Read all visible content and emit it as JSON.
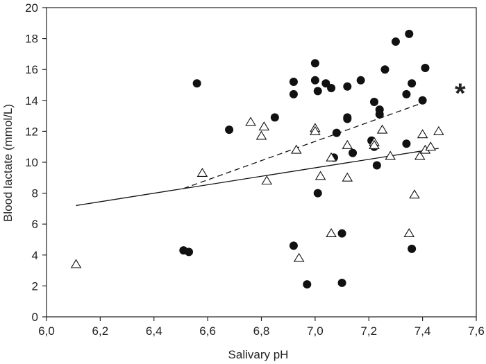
{
  "chart_data": {
    "type": "scatter",
    "xlabel": "Salivary pH",
    "ylabel": "Blood lactate (mmol/L)",
    "xlim": [
      6.0,
      7.6
    ],
    "ylim": [
      0,
      20
    ],
    "x_ticks": [
      "6,0",
      "6,2",
      "6,4",
      "6,6",
      "6,8",
      "7,0",
      "7,2",
      "7,4",
      "7,6"
    ],
    "y_ticks": [
      "0",
      "2",
      "4",
      "6",
      "8",
      "10",
      "12",
      "14",
      "16",
      "18",
      "20"
    ],
    "grid": false,
    "annotation": "*",
    "series": [
      {
        "marker": "filled-circle",
        "color": "#111111",
        "points": [
          [
            6.51,
            4.3
          ],
          [
            6.53,
            4.2
          ],
          [
            6.56,
            15.1
          ],
          [
            6.68,
            12.1
          ],
          [
            6.85,
            12.9
          ],
          [
            6.92,
            15.2
          ],
          [
            6.92,
            14.4
          ],
          [
            6.92,
            4.6
          ],
          [
            6.97,
            2.1
          ],
          [
            7.0,
            16.4
          ],
          [
            7.0,
            15.3
          ],
          [
            7.01,
            14.6
          ],
          [
            7.01,
            8.0
          ],
          [
            7.04,
            15.1
          ],
          [
            7.06,
            14.8
          ],
          [
            7.07,
            10.3
          ],
          [
            7.08,
            11.9
          ],
          [
            7.1,
            5.4
          ],
          [
            7.1,
            2.2
          ],
          [
            7.12,
            14.9
          ],
          [
            7.12,
            12.9
          ],
          [
            7.12,
            12.8
          ],
          [
            7.14,
            10.6
          ],
          [
            7.17,
            15.3
          ],
          [
            7.21,
            11.4
          ],
          [
            7.22,
            13.9
          ],
          [
            7.22,
            11.0
          ],
          [
            7.23,
            9.8
          ],
          [
            7.24,
            13.4
          ],
          [
            7.24,
            13.1
          ],
          [
            7.26,
            16.0
          ],
          [
            7.3,
            17.8
          ],
          [
            7.34,
            14.4
          ],
          [
            7.34,
            11.2
          ],
          [
            7.35,
            18.3
          ],
          [
            7.36,
            15.1
          ],
          [
            7.36,
            4.4
          ],
          [
            7.4,
            14.0
          ],
          [
            7.41,
            16.1
          ]
        ],
        "trendline": {
          "style": "dashed",
          "from": [
            6.51,
            8.3
          ],
          "to": [
            7.41,
            13.9
          ]
        }
      },
      {
        "marker": "open-triangle",
        "color": "#111111",
        "points": [
          [
            6.11,
            3.4
          ],
          [
            6.58,
            9.3
          ],
          [
            6.76,
            12.6
          ],
          [
            6.8,
            11.7
          ],
          [
            6.81,
            12.3
          ],
          [
            6.82,
            8.8
          ],
          [
            6.93,
            10.8
          ],
          [
            6.94,
            3.8
          ],
          [
            7.0,
            12.2
          ],
          [
            7.0,
            12.0
          ],
          [
            7.02,
            9.1
          ],
          [
            7.06,
            10.3
          ],
          [
            7.06,
            5.4
          ],
          [
            7.12,
            11.1
          ],
          [
            7.12,
            9.0
          ],
          [
            7.22,
            11.3
          ],
          [
            7.22,
            11.1
          ],
          [
            7.25,
            12.1
          ],
          [
            7.28,
            10.4
          ],
          [
            7.35,
            5.4
          ],
          [
            7.37,
            7.9
          ],
          [
            7.39,
            10.4
          ],
          [
            7.4,
            11.8
          ],
          [
            7.41,
            10.8
          ],
          [
            7.43,
            11.0
          ],
          [
            7.46,
            12.0
          ]
        ],
        "trendline": {
          "style": "solid",
          "from": [
            6.11,
            7.2
          ],
          "to": [
            7.46,
            10.9
          ]
        }
      }
    ]
  }
}
